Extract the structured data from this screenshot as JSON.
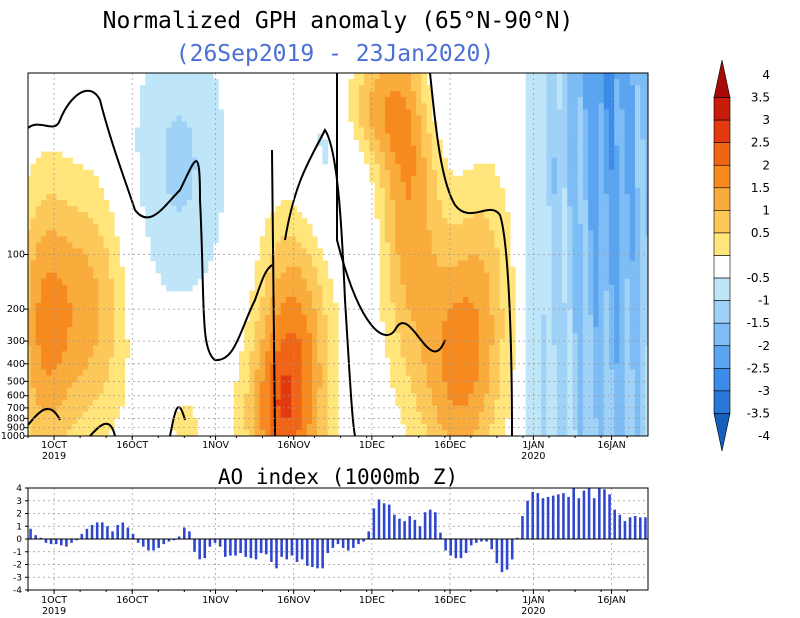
{
  "figure": {
    "title": "Normalized GPH anomaly (65°N-90°N)",
    "subtitle": "(26Sep2019 - 23Jan2020)",
    "subtitle_color": "#4a6fd6"
  },
  "chart_data": [
    {
      "type": "heatmap",
      "title": "Normalized GPH anomaly (65°N-90°N)",
      "subtitle": "(26Sep2019 - 23Jan2020)",
      "x_range_days": [
        0,
        119
      ],
      "x_ticks": [
        {
          "day": 5,
          "label": "1OCT",
          "sub": "2019"
        },
        {
          "day": 20,
          "label": "16OCT"
        },
        {
          "day": 36,
          "label": "1NOV"
        },
        {
          "day": 51,
          "label": "16NOV"
        },
        {
          "day": 66,
          "label": "1DEC"
        },
        {
          "day": 81,
          "label": "16DEC"
        },
        {
          "day": 97,
          "label": "1JAN",
          "sub": "2020"
        },
        {
          "day": 112,
          "label": "16JAN"
        }
      ],
      "y_levels_mb": [
        "1000",
        "900",
        "800",
        "700",
        "600",
        "500",
        "400",
        "300",
        "200",
        "100"
      ],
      "y_range_mb": [
        1000,
        10
      ],
      "levels": [
        -4,
        -3.5,
        -3,
        -2.5,
        -2,
        -1.5,
        -1,
        -0.5,
        0.5,
        1,
        1.5,
        2,
        2.5,
        3,
        3.5,
        4
      ],
      "colorbar_labels": [
        "4",
        "3.5",
        "3",
        "2.5",
        "2",
        "1.5",
        "1",
        "0.5",
        "-0.5",
        "-1",
        "-1.5",
        "-2",
        "-2.5",
        "-3",
        "-3.5",
        "-4"
      ],
      "colors": [
        "#1560bd",
        "#2a76d9",
        "#3c8be8",
        "#5aa4f0",
        "#7dbcf4",
        "#9fd2f6",
        "#bfe6f8",
        "#ffffff",
        "#ffe57a",
        "#fcc85a",
        "#f9ab3c",
        "#f68a1e",
        "#f06515",
        "#e2390f",
        "#c91d0c",
        "#a80a08"
      ],
      "pattern_positive_until_day": 98,
      "pattern_negative_from_day": 99
    },
    {
      "type": "bar",
      "title": "AO index (1000mb Z)",
      "ylim": [
        -4,
        4
      ],
      "y_ticks": [
        "4",
        "3",
        "2",
        "1",
        "0",
        "-1",
        "-2",
        "-3",
        "-4"
      ],
      "bar_color": "#2f46d0",
      "x_ticks": [
        {
          "day": 5,
          "label": "1OCT",
          "sub": "2019"
        },
        {
          "day": 20,
          "label": "16OCT"
        },
        {
          "day": 36,
          "label": "1NOV"
        },
        {
          "day": 51,
          "label": "16NOV"
        },
        {
          "day": 66,
          "label": "1DEC"
        },
        {
          "day": 81,
          "label": "16DEC"
        },
        {
          "day": 97,
          "label": "1JAN",
          "sub": "2020"
        },
        {
          "day": 112,
          "label": "16JAN"
        }
      ],
      "values": [
        0.8,
        0.3,
        0.1,
        -0.3,
        -0.4,
        -0.4,
        -0.5,
        -0.6,
        -0.3,
        -0.1,
        0.4,
        0.8,
        1.1,
        1.3,
        1.3,
        1.0,
        0.6,
        1.1,
        1.3,
        0.9,
        0.4,
        -0.3,
        -0.6,
        -0.9,
        -0.9,
        -0.7,
        -0.4,
        -0.2,
        -0.1,
        0.2,
        0.9,
        0.6,
        -1.0,
        -1.6,
        -1.5,
        -0.6,
        -0.3,
        -0.6,
        -1.4,
        -1.3,
        -1.3,
        -1.1,
        -1.4,
        -1.5,
        -1.6,
        -1.1,
        -1.2,
        -1.8,
        -2.3,
        -1.4,
        -1.6,
        -1.3,
        -1.8,
        -1.6,
        -2.1,
        -2.2,
        -2.3,
        -2.3,
        -1.1,
        -0.7,
        -0.4,
        -0.7,
        -0.9,
        -0.7,
        -0.4,
        -0.2,
        0.6,
        2.4,
        3.1,
        2.8,
        2.7,
        1.9,
        1.6,
        1.4,
        1.8,
        1.5,
        1.0,
        2.1,
        2.3,
        2.1,
        0.5,
        -0.9,
        -1.3,
        -1.5,
        -1.5,
        -1.1,
        -0.5,
        -0.3,
        -0.2,
        -0.2,
        -0.8,
        -1.9,
        -2.6,
        -2.4,
        -1.6,
        0.1,
        1.8,
        3.0,
        3.7,
        3.6,
        3.2,
        3.3,
        3.4,
        3.5,
        3.6,
        3.3,
        4.0,
        3.2,
        3.8,
        4.0,
        3.2,
        4.0,
        3.9,
        3.5,
        2.3,
        1.9,
        1.4,
        1.7,
        1.8,
        1.7,
        1.7
      ]
    }
  ]
}
